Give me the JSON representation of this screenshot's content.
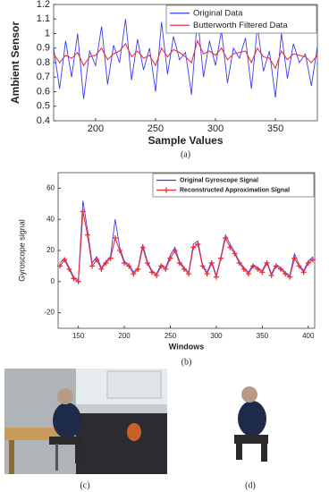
{
  "chart_data": [
    {
      "type": "line",
      "caption": "(a)",
      "xlabel": "Sample Values",
      "ylabel": "Ambient Sensor",
      "x": [
        165,
        170,
        175,
        180,
        185,
        190,
        195,
        200,
        205,
        210,
        215,
        220,
        225,
        230,
        235,
        240,
        245,
        250,
        255,
        260,
        265,
        270,
        275,
        280,
        285,
        290,
        295,
        300,
        305,
        310,
        315,
        320,
        325,
        330,
        335,
        340,
        345,
        350,
        355,
        360,
        365,
        370,
        375,
        380,
        385
      ],
      "series": [
        {
          "name": "Original Data",
          "color": "#3b3bf0",
          "values": [
            0.9,
            0.62,
            0.95,
            0.7,
            1.0,
            0.55,
            0.88,
            0.78,
            1.05,
            0.65,
            0.92,
            0.8,
            1.1,
            0.68,
            0.96,
            0.75,
            0.9,
            0.6,
            1.08,
            0.72,
            0.98,
            0.82,
            0.87,
            0.58,
            1.12,
            0.7,
            0.95,
            0.78,
            1.02,
            0.66,
            0.9,
            0.83,
            0.97,
            0.62,
            1.05,
            0.74,
            0.88,
            0.56,
            1.0,
            0.69,
            0.93,
            0.8,
            0.86,
            0.64,
            0.91
          ]
        },
        {
          "name": "Butterworth Filtered Data",
          "color": "#e8303a",
          "values": [
            0.86,
            0.8,
            0.85,
            0.83,
            0.87,
            0.78,
            0.84,
            0.85,
            0.9,
            0.82,
            0.86,
            0.88,
            0.93,
            0.84,
            0.88,
            0.83,
            0.85,
            0.78,
            0.9,
            0.84,
            0.89,
            0.87,
            0.84,
            0.8,
            0.95,
            0.86,
            0.88,
            0.85,
            0.9,
            0.82,
            0.86,
            0.87,
            0.88,
            0.8,
            0.9,
            0.84,
            0.83,
            0.76,
            0.88,
            0.82,
            0.86,
            0.85,
            0.84,
            0.8,
            0.85
          ]
        }
      ],
      "xlim": [
        165,
        385
      ],
      "xticks": [
        200,
        250,
        300,
        350
      ],
      "ylim": [
        0.4,
        1.2
      ],
      "yticks": [
        0.4,
        0.5,
        0.6,
        0.7,
        0.8,
        0.9,
        1,
        1.1,
        1.2
      ],
      "grid": false,
      "legend": "upper right"
    },
    {
      "type": "line",
      "caption": "(b)",
      "xlabel": "Windows",
      "ylabel": "Gyroscope signal",
      "x": [
        130,
        135,
        140,
        145,
        150,
        155,
        160,
        165,
        170,
        175,
        180,
        185,
        190,
        195,
        200,
        205,
        210,
        215,
        220,
        225,
        230,
        235,
        240,
        245,
        250,
        255,
        260,
        265,
        270,
        275,
        280,
        285,
        290,
        295,
        300,
        305,
        310,
        315,
        320,
        325,
        330,
        335,
        340,
        345,
        350,
        355,
        360,
        365,
        370,
        375,
        380,
        385,
        390,
        395,
        400,
        405
      ],
      "series": [
        {
          "name": "Original Gyroscope Signal",
          "color": "#3b3bf0",
          "values": [
            12,
            15,
            9,
            3,
            1,
            52,
            33,
            12,
            16,
            9,
            13,
            16,
            40,
            22,
            13,
            11,
            6,
            9,
            24,
            13,
            7,
            5,
            11,
            9,
            17,
            22,
            13,
            9,
            6,
            24,
            26,
            11,
            6,
            13,
            4,
            16,
            30,
            24,
            19,
            13,
            9,
            6,
            11,
            9,
            7,
            13,
            5,
            11,
            9,
            6,
            4,
            18,
            11,
            7,
            13,
            16
          ]
        },
        {
          "name": "Reconstructed Approximation Signal",
          "color": "#e8303a",
          "marker": "+",
          "values": [
            10,
            14,
            8,
            2,
            0,
            45,
            30,
            10,
            14,
            8,
            12,
            15,
            28,
            20,
            12,
            10,
            5,
            8,
            22,
            12,
            6,
            4,
            10,
            8,
            15,
            20,
            12,
            8,
            5,
            22,
            24,
            10,
            5,
            12,
            3,
            15,
            28,
            22,
            18,
            12,
            8,
            5,
            10,
            8,
            6,
            12,
            4,
            10,
            8,
            5,
            3,
            15,
            10,
            6,
            12,
            14
          ]
        }
      ],
      "xlim": [
        128,
        407
      ],
      "xticks": [
        150,
        200,
        250,
        300,
        350,
        400
      ],
      "ylim": [
        -30,
        70
      ],
      "yticks": [
        -20,
        0,
        20,
        40,
        60
      ],
      "grid": false,
      "legend": "upper right"
    }
  ],
  "figure": {
    "captions": [
      "(c)",
      "(d)"
    ]
  }
}
